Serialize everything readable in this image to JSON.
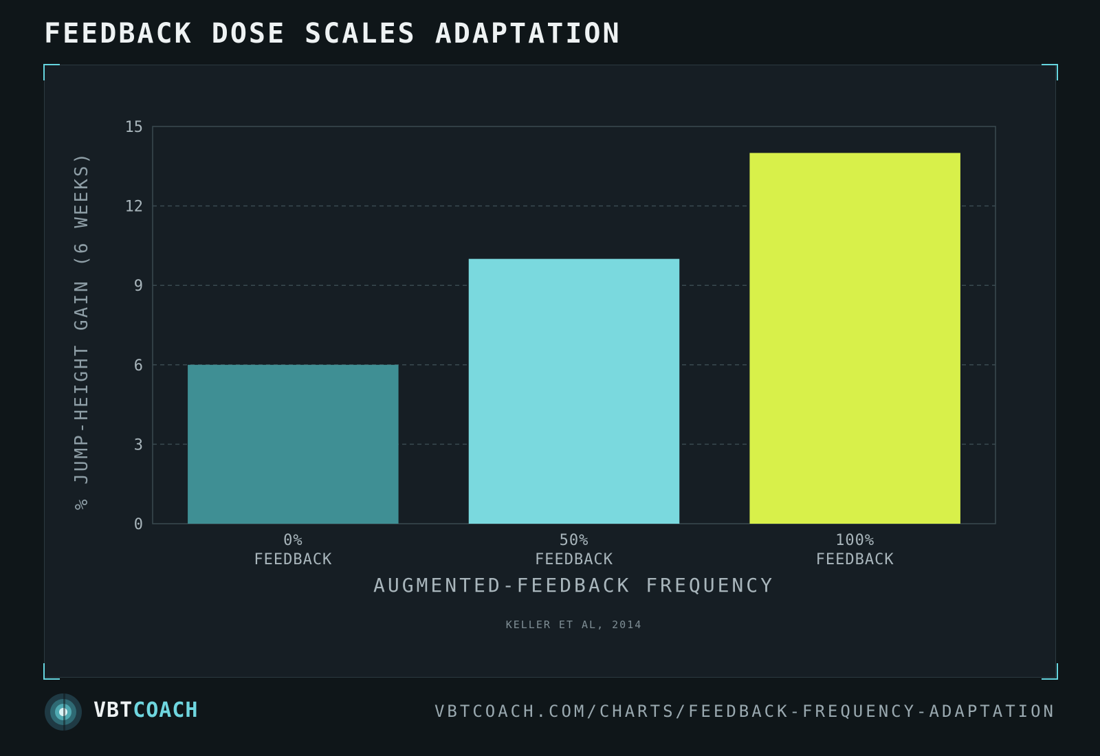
{
  "header": {
    "title": "FEEDBACK DOSE SCALES ADAPTATION"
  },
  "chart_data": {
    "type": "bar",
    "categories": [
      [
        "0%",
        "FEEDBACK"
      ],
      [
        "50%",
        "FEEDBACK"
      ],
      [
        "100%",
        "FEEDBACK"
      ]
    ],
    "values": [
      6,
      10,
      14
    ],
    "colors": [
      "#3f8f94",
      "#7ad9de",
      "#d8f04a"
    ],
    "title": "FEEDBACK DOSE SCALES ADAPTATION",
    "xlabel": "AUGMENTED-FEEDBACK FREQUENCY",
    "ylabel": "% JUMP-HEIGHT GAIN (6 WEEKS)",
    "ylim": [
      0,
      15
    ],
    "yticks": [
      0,
      3,
      6,
      9,
      12,
      15
    ],
    "grid": true,
    "source": "KELLER ET AL, 2014"
  },
  "footer": {
    "brand_primary": "VBT",
    "brand_accent": "COACH",
    "url": "VBTCOACH.COM/CHARTS/FEEDBACK-FREQUENCY-ADAPTATION"
  },
  "colors": {
    "background": "#0f1619",
    "panel": "#161e24",
    "accent": "#6fd6df",
    "highlight": "#d8f04a"
  }
}
